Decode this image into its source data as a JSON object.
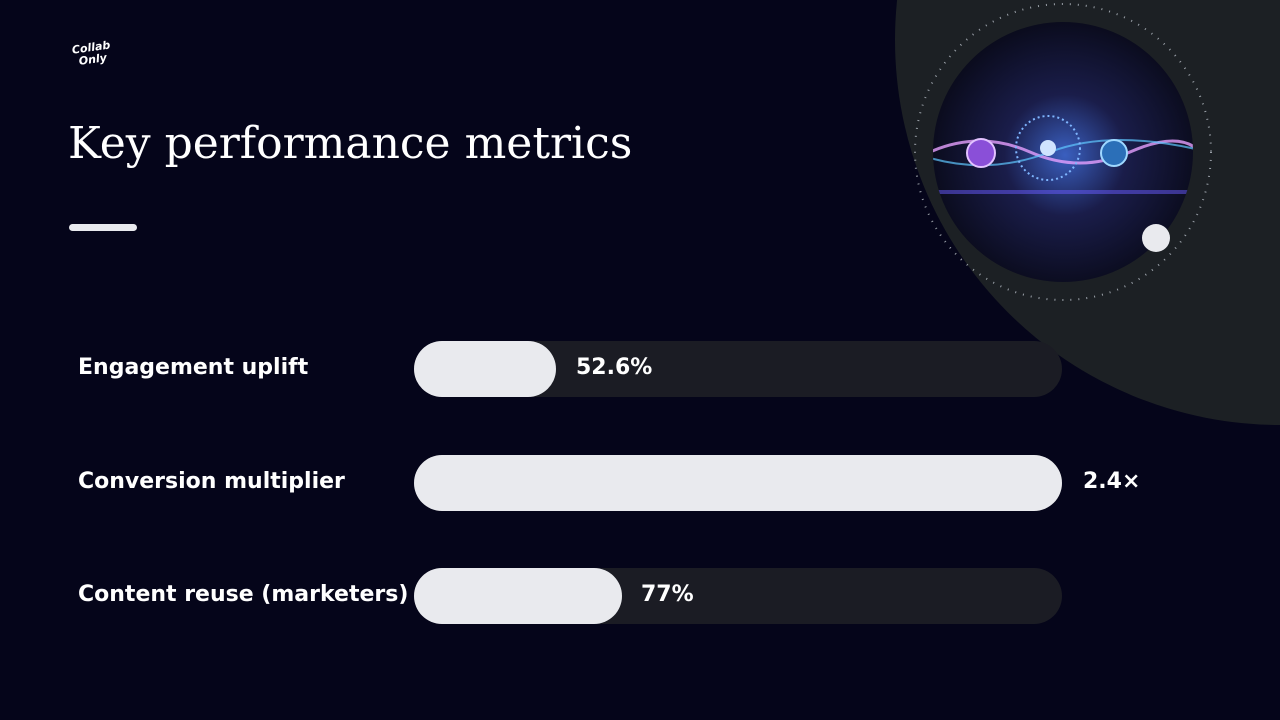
{
  "logo": "Collab Only",
  "title": "Key performance metrics",
  "metrics": [
    {
      "label": "Engagement uplift",
      "value": "52.6%"
    },
    {
      "label": "Conversion multiplier",
      "value": "2.4×"
    },
    {
      "label": "Content reuse (marketers)",
      "value": "77%"
    }
  ]
}
